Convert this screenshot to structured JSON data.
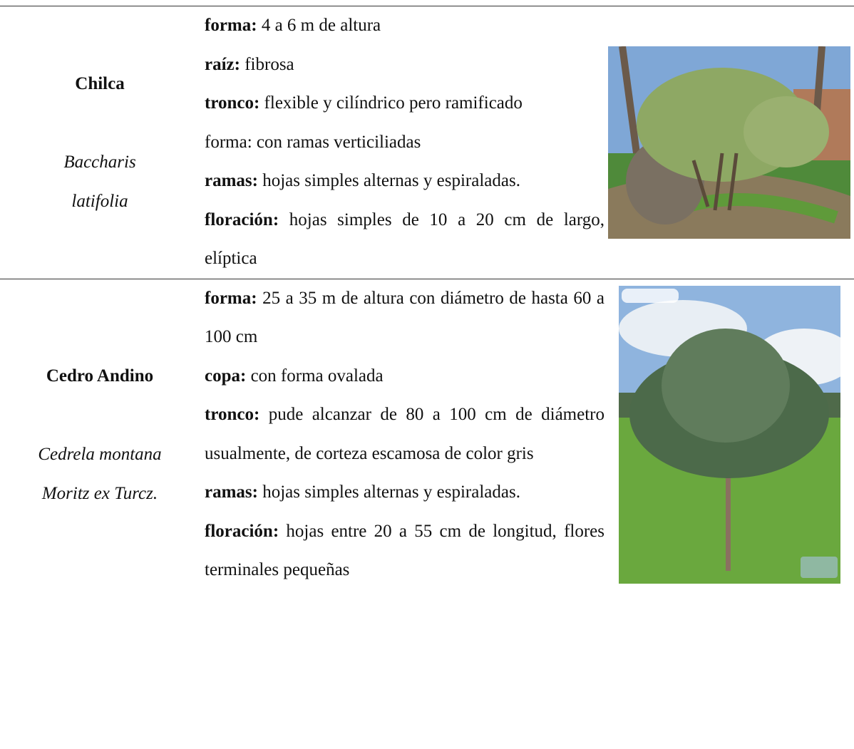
{
  "table": {
    "rows": [
      {
        "common_name": "Chilca",
        "scientific_name": [
          "Baccharis",
          "latifolia"
        ],
        "description": [
          {
            "label": "forma:",
            "text": "4 a 6 m de altura"
          },
          {
            "label": "raíz:",
            "text": "fibrosa"
          },
          {
            "label": "tronco:",
            "text": "flexible y cilíndrico pero ramificado"
          },
          {
            "text": "forma: con ramas verticiliadas"
          },
          {
            "label": "ramas:",
            "text": "hojas simples alternas y espiraladas."
          },
          {
            "label": "floración:",
            "text": "hojas simples de 10 a 20 cm de largo, elíptica"
          }
        ]
      },
      {
        "common_name": "Cedro Andino",
        "scientific_name": [
          "Cedrela montana",
          "Moritz ex Turcz."
        ],
        "description": [
          {
            "label": "forma:",
            "text": "25 a 35 m de altura con diámetro de hasta 60 a 100 cm"
          },
          {
            "label": "copa:",
            "text": "con forma ovalada"
          },
          {
            "label": "tronco:",
            "text": "pude alcanzar de 80 a 100 cm de diámetro usualmente, de corteza escamosa de color gris"
          },
          {
            "label": "ramas:",
            "text": "hojas simples alternas y espiraladas."
          },
          {
            "label": "floración:",
            "text": "hojas entre 20 a 55 cm de longitud, flores terminales pequeñas"
          }
        ]
      }
    ]
  }
}
